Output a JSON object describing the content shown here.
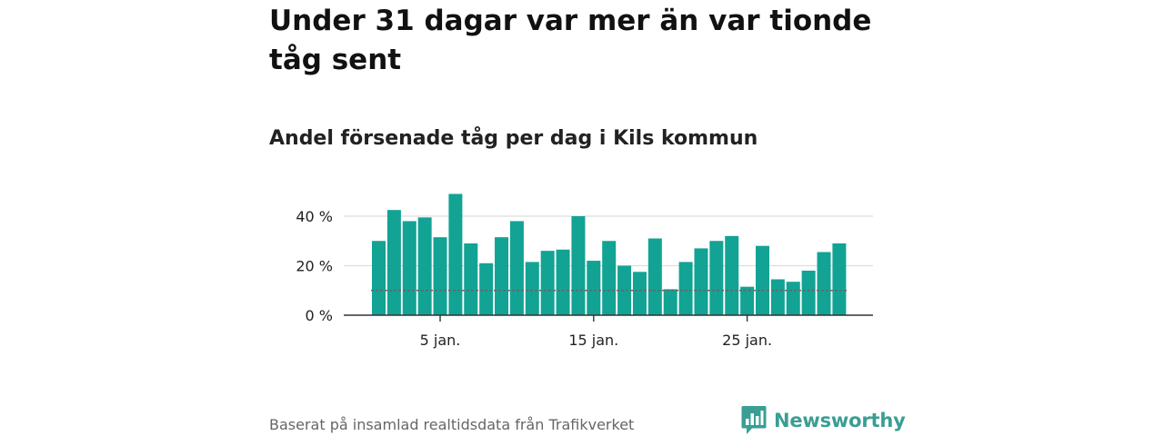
{
  "header": {
    "title": "Under 31 dagar var mer än var tionde tåg sent",
    "subtitle": "Andel försenade tåg per dag i Kils kommun"
  },
  "footer": {
    "source": "Baserat på insamlad realtidsdata från Trafikverket",
    "brand": "Newsworthy"
  },
  "colors": {
    "bar": "#12a394",
    "grid": "#dddddd",
    "axis": "#333333",
    "reference_line": "#666666",
    "brand": "#3a9e93"
  },
  "icons": {
    "brand_logo": "bar-chart-speech-bubble-icon"
  },
  "chart_data": {
    "type": "bar",
    "x": [
      1,
      2,
      3,
      4,
      5,
      6,
      7,
      8,
      9,
      10,
      11,
      12,
      13,
      14,
      15,
      16,
      17,
      18,
      19,
      20,
      21,
      22,
      23,
      24,
      25,
      26,
      27,
      28,
      29,
      30,
      31
    ],
    "values": [
      30,
      42.5,
      38,
      39.5,
      31.5,
      49,
      29,
      21,
      31.5,
      38,
      21.5,
      26,
      26.5,
      40,
      22,
      30,
      20,
      17.5,
      31,
      10.5,
      21.5,
      27,
      30,
      32,
      11.5,
      28,
      14.5,
      13.5,
      18,
      25.5,
      29
    ],
    "xticks": [
      5,
      15,
      25
    ],
    "xtick_labels": [
      "5 jan.",
      "15 jan.",
      "25 jan."
    ],
    "yticks": [
      0,
      20,
      40
    ],
    "ytick_labels": [
      "0 %",
      "20 %",
      "40 %"
    ],
    "ylim": [
      0,
      50
    ],
    "reference_line": 10,
    "grid": true
  }
}
